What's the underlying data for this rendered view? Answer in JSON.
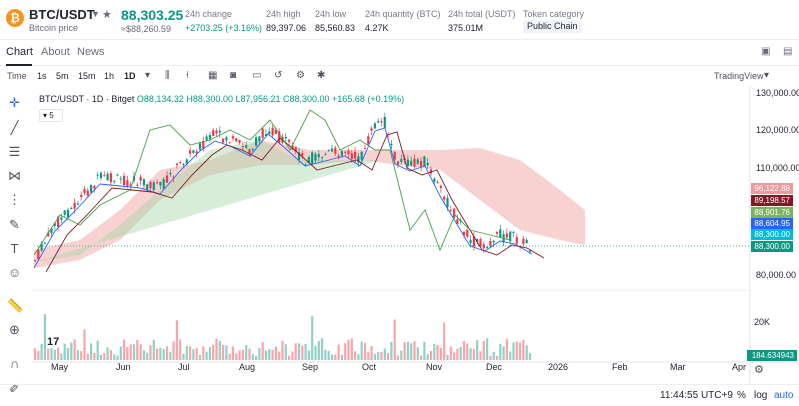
{
  "header": {
    "symbol": "BTC/USDT",
    "symbol_sub": "Bitcoin price",
    "price": "88,303.25",
    "price_sub": "≈$88,260.59",
    "stats": [
      {
        "label": "24h change",
        "value": "+2703.25 (+3.16%)"
      },
      {
        "label": "24h high",
        "value": "89,397.06"
      },
      {
        "label": "24h low",
        "value": "85,560.83"
      },
      {
        "label": "24h quantity (BTC)",
        "value": "4.27K"
      },
      {
        "label": "24h total (USDT)",
        "value": "375.01M"
      }
    ],
    "category_label": "Token category",
    "category_value": "Public Chain"
  },
  "tabs": [
    "Chart",
    "About",
    "News"
  ],
  "toolbar": {
    "time_label": "Time",
    "intervals": [
      "1s",
      "5m",
      "15m",
      "1h",
      "1D"
    ],
    "view_label": "TradingView"
  },
  "legend": {
    "title": "BTC/USDT · 1D · Bitget",
    "values": "O88,134.32 H88,300.00 L87,956.21 C88,300.00 +165.68 (+0.19%)",
    "indicator_count": "5"
  },
  "yaxis": {
    "ticks": [
      "130,000.00",
      "120,000.00",
      "110,000.00",
      "80,000.00",
      "20K"
    ],
    "price_labels": [
      {
        "value": "96,122.88",
        "color": "#ef9a9a"
      },
      {
        "value": "89,198.57",
        "color": "#801922"
      },
      {
        "value": "88,901.76",
        "color": "#7bb461"
      },
      {
        "value": "88,604.95",
        "color": "#2962ff"
      },
      {
        "value": "88,300.00",
        "color": "#00bcd4"
      },
      {
        "value": "88,300.00",
        "color": "#089981"
      },
      {
        "value": "184.634943",
        "color": "#089981"
      }
    ]
  },
  "xaxis": {
    "ticks": [
      "May",
      "Jun",
      "Jul",
      "Aug",
      "Sep",
      "Oct",
      "Nov",
      "Dec",
      "2026",
      "Feb",
      "Mar",
      "Apr"
    ]
  },
  "footer": {
    "time": "11:44:55 UTC+9",
    "percent": "%",
    "log": "log",
    "auto": "auto"
  },
  "colors": {
    "up": "#089981",
    "down": "#f23645",
    "cloud_up": "#a5d6a7",
    "cloud_down": "#ef9a9a"
  }
}
